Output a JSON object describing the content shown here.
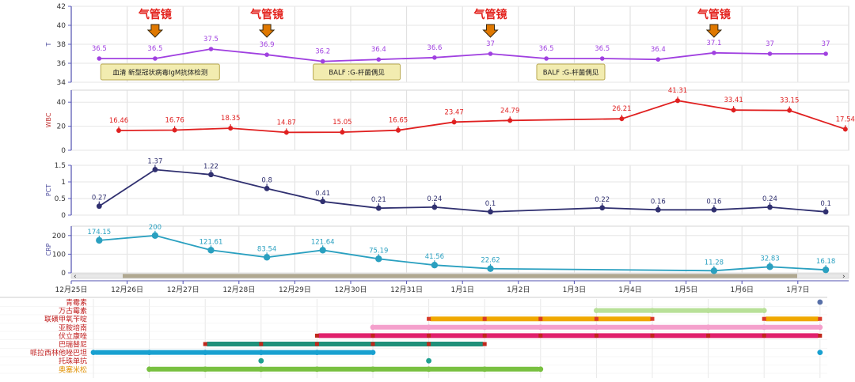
{
  "colors": {
    "temp": "#a040e0",
    "wbc": "#e02020",
    "pct": "#303070",
    "crp": "#2aa0c0",
    "bronch_text": "#e3211c",
    "arrow": "#e07800",
    "note_bg": "#f2ecb0",
    "note_border": "#b8a850",
    "scroll": "#b0a890"
  },
  "bronchoscopy_label": "气管镜",
  "annotations": [
    {
      "text": "血清 新型冠状病毒IgM抗体检测",
      "x": 0.5
    },
    {
      "text": "BALF :G-杆菌偶见",
      "x": 4.3
    },
    {
      "text": "BALF :G-杆菌偶见",
      "x": 8.3
    }
  ],
  "x_ticks": [
    "12月25日",
    "12月26日",
    "12月27日",
    "12月28日",
    "12月29日",
    "12月30日",
    "12月31日",
    "1月1日",
    "1月2日",
    "1月3日",
    "1月4日",
    "1月5日",
    "1月6日",
    "1月7日"
  ],
  "chart_data": [
    {
      "type": "line",
      "ylabel": "T",
      "ylim": [
        34,
        42
      ],
      "yticks": [
        34,
        36,
        38,
        40,
        42
      ],
      "x": [
        0.5,
        1.5,
        2.5,
        3.5,
        4.5,
        5.5,
        6.5,
        7.5,
        8.5,
        9.5,
        10.5,
        11.5,
        12.5,
        13.5
      ],
      "values": [
        36.5,
        36.5,
        37.5,
        36.9,
        36.2,
        36.4,
        36.6,
        37,
        36.5,
        36.5,
        36.4,
        37.1,
        37,
        37
      ],
      "labels": [
        "36.5",
        "36.5",
        "37.5",
        "36.9",
        "36.2",
        "36.4",
        "36.6",
        "37",
        "36.5",
        "36.5",
        "36.4",
        "37.1",
        "37",
        "37"
      ],
      "bronchoscopy_x": [
        1.5,
        3.5,
        7.5,
        11.5
      ]
    },
    {
      "type": "line",
      "ylabel": "WBC",
      "ylim": [
        0,
        50
      ],
      "yticks": [
        0,
        20,
        40
      ],
      "x": [
        0.85,
        1.85,
        2.85,
        3.85,
        4.85,
        5.85,
        6.85,
        7.85,
        9.85,
        10.85,
        11.85,
        12.85,
        13.85
      ],
      "values": [
        16.46,
        16.76,
        18.35,
        14.87,
        15.05,
        16.65,
        23.47,
        24.79,
        26.21,
        41.31,
        33.41,
        33.15,
        17.54
      ],
      "labels": [
        "16.46",
        "16.76",
        "18.35",
        "14.87",
        "15.05",
        "16.65",
        "23.47",
        "24.79",
        "26.21",
        "41.31",
        "33.41",
        "33.15",
        "17.54"
      ]
    },
    {
      "type": "line",
      "ylabel": "PCT",
      "ylim": [
        0,
        1.5
      ],
      "yticks": [
        0,
        0.5,
        1,
        1.5
      ],
      "ytick_labels": [
        "0",
        "0.5",
        "1",
        "1.5"
      ],
      "x": [
        0.5,
        1.5,
        2.5,
        3.5,
        4.5,
        5.5,
        6.5,
        7.5,
        9.5,
        10.5,
        11.5,
        12.5,
        13.5
      ],
      "values": [
        0.27,
        1.37,
        1.22,
        0.8,
        0.41,
        0.21,
        0.24,
        0.1,
        0.22,
        0.16,
        0.16,
        0.24,
        0.1
      ],
      "labels": [
        "0.27",
        "1.37",
        "1.22",
        "0.8",
        "0.41",
        "0.21",
        "0.24",
        "0.1",
        "0.22",
        "0.16",
        "0.16",
        "0.24",
        "0.1"
      ]
    },
    {
      "type": "line",
      "ylabel": "CRP",
      "ylim": [
        0,
        250
      ],
      "yticks": [
        0,
        100,
        200
      ],
      "x": [
        0.5,
        1.5,
        2.5,
        3.5,
        4.5,
        5.5,
        6.5,
        7.5,
        11.5,
        12.5,
        13.5
      ],
      "values": [
        174.15,
        200,
        121.61,
        83.54,
        121.64,
        75.19,
        41.56,
        22.62,
        11.28,
        32.83,
        16.18
      ],
      "labels": [
        "174.15",
        "200",
        "121.61",
        "83.54",
        "121.64",
        "75.19",
        "41.56",
        "22.62",
        "11.28",
        "32.83",
        "16.18"
      ]
    },
    {
      "type": "gantt",
      "drugs": [
        {
          "name": "青霉素",
          "color": "#5870a8",
          "label_color": "#c02020",
          "segments": [],
          "points": [
            13.0
          ]
        },
        {
          "name": "万古霉素",
          "color": "#b8e098",
          "label_color": "#c02020",
          "segments": [
            [
              9.0,
              12.0
            ]
          ],
          "points": [
            9.0,
            10.0,
            11.0,
            12.0
          ]
        },
        {
          "name": "联磺甲氧苄啶",
          "color": "#f0a800",
          "label_color": "#c02020",
          "segments": [
            [
              6.0,
              10.0
            ],
            [
              12.0,
              13.0
            ]
          ],
          "points": [
            6.0,
            7.0,
            8.0,
            9.0,
            10.0,
            12.0,
            13.0
          ],
          "point_color": "#d83a2a"
        },
        {
          "name": "亚胺培南",
          "color": "#f4a0cc",
          "label_color": "#c02020",
          "segments": [
            [
              5.0,
              13.0
            ]
          ],
          "points": [
            5.0,
            6.0,
            7.0,
            8.0,
            9.0,
            10.0,
            11.0,
            12.0,
            13.0
          ]
        },
        {
          "name": "伏立康唑",
          "color": "#e0206c",
          "label_color": "#c02020",
          "segments": [
            [
              4.0,
              13.0
            ]
          ],
          "points": [
            4.0,
            5.0,
            6.0,
            7.0,
            8.0,
            9.0,
            10.0,
            11.0,
            12.0,
            13.0
          ],
          "point_color": "#c0281c"
        },
        {
          "name": "巴瑞替尼",
          "color": "#20907a",
          "label_color": "#c02020",
          "segments": [
            [
              2.0,
              7.0
            ]
          ],
          "points": [
            2.0,
            3.0,
            4.0,
            5.0,
            6.0,
            7.0
          ],
          "point_color": "#c0281c"
        },
        {
          "name": "哌拉西林他唑巴坦",
          "color": "#18a0d0",
          "label_color": "#c02020",
          "segments": [
            [
              0.0,
              5.0
            ]
          ],
          "points": [
            0.0,
            1.0,
            2.0,
            3.0,
            4.0,
            5.0,
            13.0
          ]
        },
        {
          "name": "托珠单抗",
          "color": "#20a090",
          "label_color": "#c02020",
          "segments": [],
          "points": [
            3.0,
            6.0
          ]
        },
        {
          "name": "奥塞米松",
          "color": "#78c040",
          "label_color": "#e09000",
          "segments": [
            [
              1.0,
              8.0
            ]
          ],
          "points": [
            1.0,
            2.0,
            3.0,
            4.0,
            5.0,
            6.0,
            7.0,
            8.0
          ]
        }
      ]
    }
  ]
}
